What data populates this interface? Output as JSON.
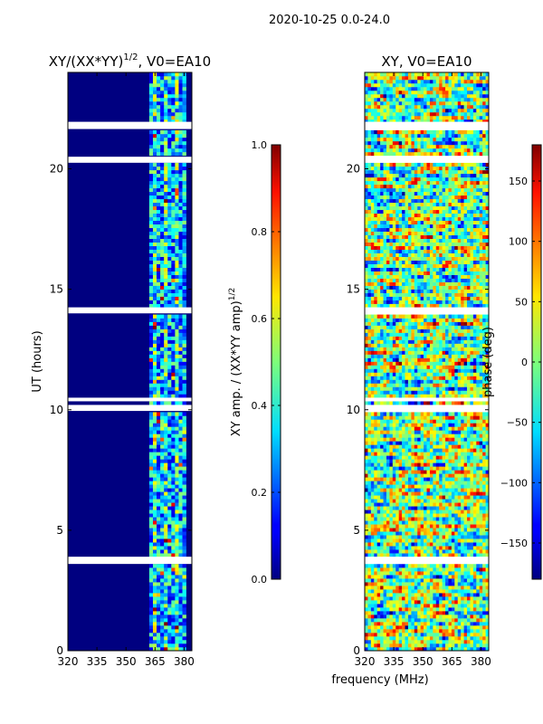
{
  "suptitle": "2020-10-25 0.0-24.0",
  "shared_xlabel": "frequency (MHz)",
  "chart_data": [
    {
      "type": "heatmap",
      "title_text": "XY/(XX*YY)",
      "title_exponent": "1/2",
      "title_suffix": ", V0=EA10",
      "xlabel": "",
      "ylabel": "UT (hours)",
      "xlim": [
        320,
        384
      ],
      "ylim": [
        0,
        24
      ],
      "xticks": [
        320,
        335,
        350,
        365,
        380
      ],
      "yticks": [
        0,
        5,
        10,
        15,
        20
      ],
      "colorbar": {
        "label_text": "XY amp. / (XX*YY amp)",
        "label_exponent": "1/2",
        "vmin": 0.0,
        "vmax": 1.0,
        "ticks": [
          "0.0",
          "0.2",
          "0.4",
          "0.6",
          "0.8",
          "1.0"
        ],
        "tick_values": [
          0.0,
          0.2,
          0.4,
          0.6,
          0.8,
          1.0
        ]
      },
      "signal_band_mhz": [
        362,
        381
      ],
      "background_value": 0.0,
      "flagged_ut_ranges": [
        [
          3.6,
          3.9
        ],
        [
          9.95,
          10.2
        ],
        [
          10.35,
          10.5
        ],
        [
          14.0,
          14.25
        ],
        [
          20.25,
          20.5
        ],
        [
          21.65,
          21.95
        ]
      ]
    },
    {
      "type": "heatmap",
      "title_text": "XY, V0=EA10",
      "xlabel": "frequency (MHz)",
      "ylabel": "",
      "xlim": [
        320,
        384
      ],
      "ylim": [
        0,
        24
      ],
      "xticks": [
        320,
        335,
        350,
        365,
        380
      ],
      "yticks": [
        0,
        5,
        10,
        15,
        20
      ],
      "colorbar": {
        "label_text": "phase (deg)",
        "vmin": -180,
        "vmax": 180,
        "ticks": [
          "−150",
          "−100",
          "−50",
          "0",
          "50",
          "100",
          "150"
        ],
        "tick_values": [
          -150,
          -100,
          -50,
          0,
          50,
          100,
          150
        ]
      },
      "flagged_ut_ranges": [
        [
          3.6,
          3.9
        ],
        [
          9.95,
          10.2
        ],
        [
          10.35,
          10.5
        ],
        [
          14.0,
          14.25
        ],
        [
          20.25,
          20.5
        ],
        [
          21.65,
          21.95
        ]
      ]
    }
  ]
}
